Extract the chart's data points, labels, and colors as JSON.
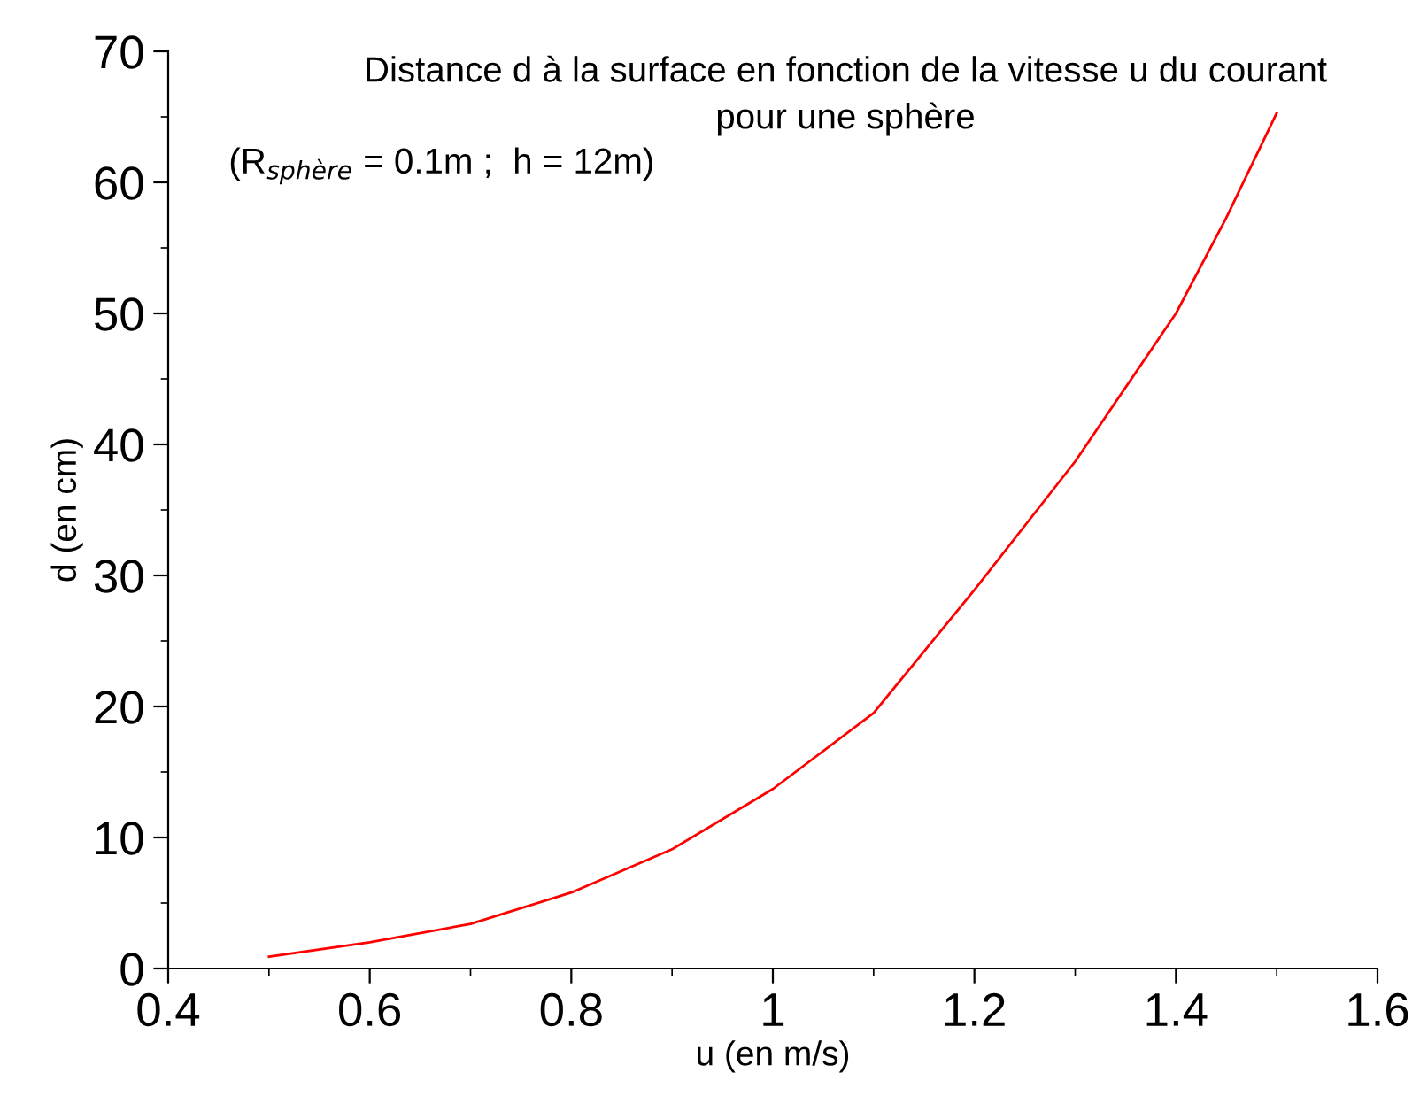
{
  "chart_data": {
    "type": "line",
    "title": "Distance d à la surface en fonction de la vitesse u du courant\npour une sphère",
    "annotations": [
      "(R$_{sphère}$ = 0.1m ;  h = 12m)"
    ],
    "xlabel": "u (en m/s)",
    "ylabel": "d (en cm)",
    "x": [
      0.5,
      0.6,
      0.7,
      0.8,
      0.9,
      1.0,
      1.1,
      1.2,
      1.3,
      1.4,
      1.45,
      1.5
    ],
    "series": [
      {
        "color": "#ff0000",
        "values": [
          0.9,
          2.0,
          3.4,
          5.8,
          9.1,
          13.7,
          19.5,
          28.9,
          38.7,
          50.0,
          57.3,
          65.3
        ]
      }
    ],
    "xlim": [
      0.4,
      1.6
    ],
    "xticks": [
      0.4,
      0.6,
      0.8,
      1,
      1.2,
      1.4,
      1.6
    ],
    "ylim": [
      0,
      70
    ],
    "yticks": [
      0,
      10,
      20,
      30,
      40,
      50,
      60,
      70
    ],
    "grid": false,
    "legend": false,
    "marker": "none",
    "line_style": "solid"
  }
}
